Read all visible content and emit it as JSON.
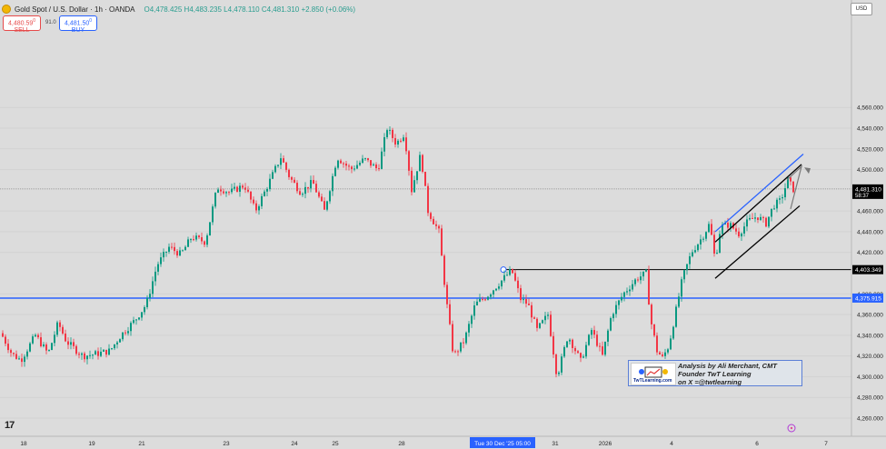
{
  "header": {
    "symbol": "Gold Spot / U.S. Dollar · 1h · OANDA",
    "open": "O4,478.425",
    "high": "H4,483.235",
    "low": "L4,478.110",
    "close": "C4,481.310",
    "change": "+2.850 (+0.06%)"
  },
  "trade": {
    "sell_price": "4,480.59",
    "sell_sup": "0",
    "sell_label": "SELL",
    "spread": "91.0",
    "buy_price": "4,481.50",
    "buy_sup": "0",
    "buy_label": "BUY"
  },
  "currency": "USD",
  "annotation": {
    "line1": "Analysis by Ali Merchant, CMT",
    "line2": "Founder TwT Learning",
    "line3": "on X =@twtlearning",
    "badge": "TwTLearning.com"
  },
  "colors": {
    "up": "#089981",
    "down": "#f23645",
    "level": "#2962ff",
    "background": "#dcdcdc"
  },
  "chart_data": {
    "type": "candlestick",
    "y_ticks": [
      4260,
      4280,
      4300,
      4320,
      4340,
      4360,
      4380,
      4420,
      4440,
      4460,
      4500,
      4520,
      4540,
      4560
    ],
    "y_tick_labels": [
      "4,260.000",
      "4,280.000",
      "4,300.000",
      "4,320.000",
      "4,340.000",
      "4,360.000",
      "4,380.000",
      "4,420.000",
      "4,440.000",
      "4,460.000",
      "4,500.000",
      "4,520.000",
      "4,540.000",
      "4,560.000"
    ],
    "ylim": [
      4250,
      4570
    ],
    "x_labels": [
      "18",
      "19",
      "21",
      "23",
      "24",
      "25",
      "28",
      "31",
      "2026",
      "4",
      "6",
      "7"
    ],
    "x_label_highlight": "Tue 30 Dec '25  05:00",
    "price_badges": [
      {
        "value": 4481.31,
        "label": "4,481.310",
        "sub": "58:37",
        "color": "#000000"
      },
      {
        "value": 4403.349,
        "label": "4,403.349",
        "color": "#000000"
      },
      {
        "value": 4375.915,
        "label": "4,375.915",
        "color": "#2962ff"
      }
    ],
    "horizontal_levels": [
      {
        "value": 4375.915,
        "color": "#2962ff",
        "style": "full"
      },
      {
        "value": 4403.349,
        "color": "#000000",
        "style": "ray-from-dec-30"
      },
      {
        "value": 4481.31,
        "color": "#888888",
        "style": "full-thin"
      }
    ],
    "waypoints": [
      [
        0,
        4342
      ],
      [
        12,
        4322
      ],
      [
        22,
        4316
      ],
      [
        38,
        4340
      ],
      [
        52,
        4322
      ],
      [
        63,
        4352
      ],
      [
        72,
        4334
      ],
      [
        90,
        4320
      ],
      [
        105,
        4322
      ],
      [
        120,
        4325
      ],
      [
        132,
        4340
      ],
      [
        148,
        4355
      ],
      [
        160,
        4370
      ],
      [
        172,
        4408
      ],
      [
        185,
        4425
      ],
      [
        198,
        4418
      ],
      [
        210,
        4435
      ],
      [
        225,
        4430
      ],
      [
        238,
        4483
      ],
      [
        252,
        4478
      ],
      [
        268,
        4485
      ],
      [
        280,
        4460
      ],
      [
        290,
        4478
      ],
      [
        308,
        4512
      ],
      [
        318,
        4492
      ],
      [
        330,
        4478
      ],
      [
        343,
        4488
      ],
      [
        356,
        4460
      ],
      [
        370,
        4512
      ],
      [
        385,
        4500
      ],
      [
        400,
        4510
      ],
      [
        415,
        4500
      ],
      [
        425,
        4540
      ],
      [
        435,
        4525
      ],
      [
        444,
        4535
      ],
      [
        452,
        4480
      ],
      [
        462,
        4515
      ],
      [
        470,
        4460
      ],
      [
        482,
        4440
      ],
      [
        490,
        4375
      ],
      [
        498,
        4320
      ],
      [
        510,
        4335
      ],
      [
        522,
        4370
      ],
      [
        535,
        4378
      ],
      [
        548,
        4390
      ],
      [
        562,
        4403
      ],
      [
        572,
        4375
      ],
      [
        580,
        4370
      ],
      [
        590,
        4345
      ],
      [
        602,
        4360
      ],
      [
        612,
        4300
      ],
      [
        624,
        4340
      ],
      [
        638,
        4315
      ],
      [
        650,
        4345
      ],
      [
        662,
        4320
      ],
      [
        672,
        4360
      ],
      [
        685,
        4380
      ],
      [
        700,
        4395
      ],
      [
        710,
        4400
      ],
      [
        715,
        4355
      ],
      [
        722,
        4325
      ],
      [
        728,
        4318
      ],
      [
        735,
        4330
      ],
      [
        742,
        4360
      ],
      [
        750,
        4395
      ],
      [
        760,
        4420
      ],
      [
        772,
        4435
      ],
      [
        780,
        4448
      ],
      [
        786,
        4412
      ],
      [
        792,
        4445
      ],
      [
        802,
        4447
      ],
      [
        812,
        4438
      ],
      [
        822,
        4450
      ],
      [
        832,
        4455
      ],
      [
        842,
        4448
      ],
      [
        850,
        4465
      ],
      [
        858,
        4470
      ],
      [
        866,
        4490
      ],
      [
        872,
        4481
      ]
    ],
    "channel_lines": [
      {
        "x1": 787,
        "y1": 4395,
        "x2": 880,
        "y2": 4465,
        "color": "#000000"
      },
      {
        "x1": 787,
        "y1": 4430,
        "x2": 882,
        "y2": 4505,
        "color": "#000000"
      },
      {
        "x1": 787,
        "y1": 4440,
        "x2": 884,
        "y2": 4515,
        "color": "#2962ff"
      }
    ],
    "projection": [
      [
        866,
        4490
      ],
      [
        882,
        4503
      ],
      [
        870,
        4462
      ]
    ],
    "title": "",
    "xlabel": "",
    "ylabel": ""
  }
}
